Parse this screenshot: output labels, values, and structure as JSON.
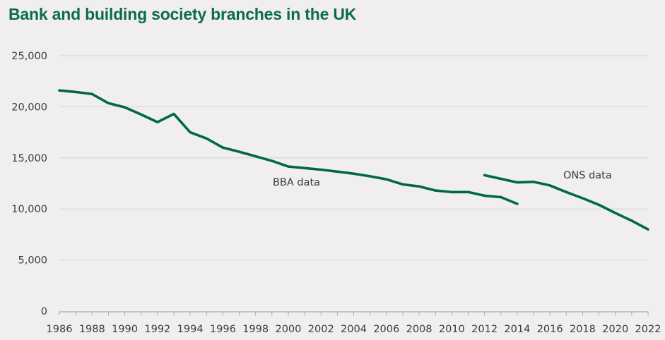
{
  "chart_data": {
    "type": "line",
    "title": "Bank and building society branches in the UK",
    "xlabel": "",
    "ylabel": "",
    "xlim": [
      1986,
      2022
    ],
    "ylim": [
      0,
      25000
    ],
    "grid": true,
    "x_ticks": [
      "1986",
      "1988",
      "1990",
      "1992",
      "1994",
      "1996",
      "1998",
      "2000",
      "2002",
      "2004",
      "2006",
      "2008",
      "2010",
      "2012",
      "2014",
      "2016",
      "2018",
      "2020",
      "2022"
    ],
    "y_ticks": [
      {
        "value": 0,
        "label": "0"
      },
      {
        "value": 5000,
        "label": "5,000"
      },
      {
        "value": 10000,
        "label": "10,000"
      },
      {
        "value": 15000,
        "label": "15,000"
      },
      {
        "value": 20000,
        "label": "20,000"
      },
      {
        "value": 25000,
        "label": "25,000"
      }
    ],
    "series": [
      {
        "name": "BBA data",
        "color": "#006848",
        "x": [
          1986,
          1987,
          1988,
          1989,
          1990,
          1991,
          1992,
          1993,
          1994,
          1995,
          1996,
          1997,
          1998,
          1999,
          2000,
          2001,
          2002,
          2003,
          2004,
          2005,
          2006,
          2007,
          2008,
          2009,
          2010,
          2011,
          2012,
          2013,
          2014
        ],
        "values": [
          21600,
          21450,
          21250,
          20350,
          19950,
          19250,
          18500,
          19300,
          17500,
          16900,
          16000,
          15600,
          15150,
          14700,
          14150,
          14000,
          13850,
          13650,
          13450,
          13200,
          12900,
          12400,
          12200,
          11800,
          11650,
          11650,
          11300,
          11150,
          10500
        ]
      },
      {
        "name": "ONS data",
        "color": "#006848",
        "x": [
          2012,
          2013,
          2014,
          2015,
          2016,
          2017,
          2018,
          2019,
          2020,
          2021,
          2022
        ],
        "values": [
          13300,
          12950,
          12600,
          12650,
          12300,
          11650,
          11050,
          10400,
          9600,
          8850,
          8000
        ]
      }
    ],
    "annotations": [
      {
        "text": "BBA data",
        "series": "BBA data",
        "x": 2000.5,
        "y": 12300
      },
      {
        "text": "ONS data",
        "series": "ONS data",
        "x": 2018.3,
        "y": 13000
      }
    ],
    "legend": "none"
  }
}
